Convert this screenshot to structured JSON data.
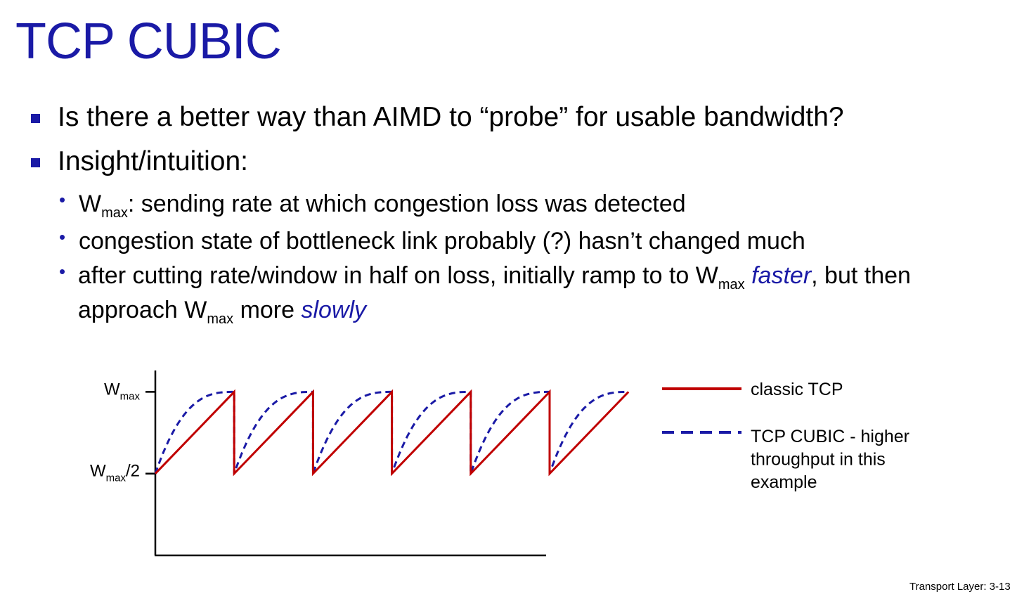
{
  "title": "TCP CUBIC",
  "bullets": {
    "b1": "Is there a better way than AIMD to “probe” for usable bandwidth?",
    "b2": "Insight/intuition:",
    "s1_w": "W",
    "s1_sub": "max",
    "s1_rest": ": sending rate at which congestion loss was detected",
    "s2": "congestion state of bottleneck link probably (?) hasn’t changed much",
    "s3_a": "after cutting rate/window in half on loss, initially ramp to to W",
    "s3_sub": "max",
    "s3_em1": "faster",
    "s3_b": ", but then",
    "s3_c": "approach W",
    "s3_sub2": "max",
    "s3_d": " more ",
    "s3_em2": "slowly"
  },
  "chart_data": {
    "type": "line",
    "yticks": [
      {
        "label_main": "W",
        "label_sub": "max",
        "label_tail": "",
        "value": 1.0
      },
      {
        "label_main": "W",
        "label_sub": "max",
        "label_tail": "/2",
        "value": 0.5
      }
    ],
    "ylim": [
      0,
      1.1
    ],
    "x": [
      0,
      1,
      2,
      3,
      4,
      5,
      6
    ],
    "cycle_ends": [
      1,
      2,
      3,
      4,
      5,
      6
    ],
    "series": [
      {
        "name": "classic TCP",
        "style": "solid",
        "color": "#c00000",
        "shape": "linear ramp from Wmax/2 to Wmax, then halve"
      },
      {
        "name": "TCP CUBIC - higher throughput in this example",
        "style": "dashed",
        "color": "#1a1aa6",
        "shape": "concave ramp from Wmax/2 to Wmax, then halve"
      }
    ],
    "legend": [
      {
        "lines": [
          "classic TCP"
        ]
      },
      {
        "lines": [
          "TCP CUBIC - higher",
          "throughput in this",
          "example"
        ]
      }
    ],
    "legend_position": "right"
  },
  "footer": "Transport Layer: 3-13"
}
